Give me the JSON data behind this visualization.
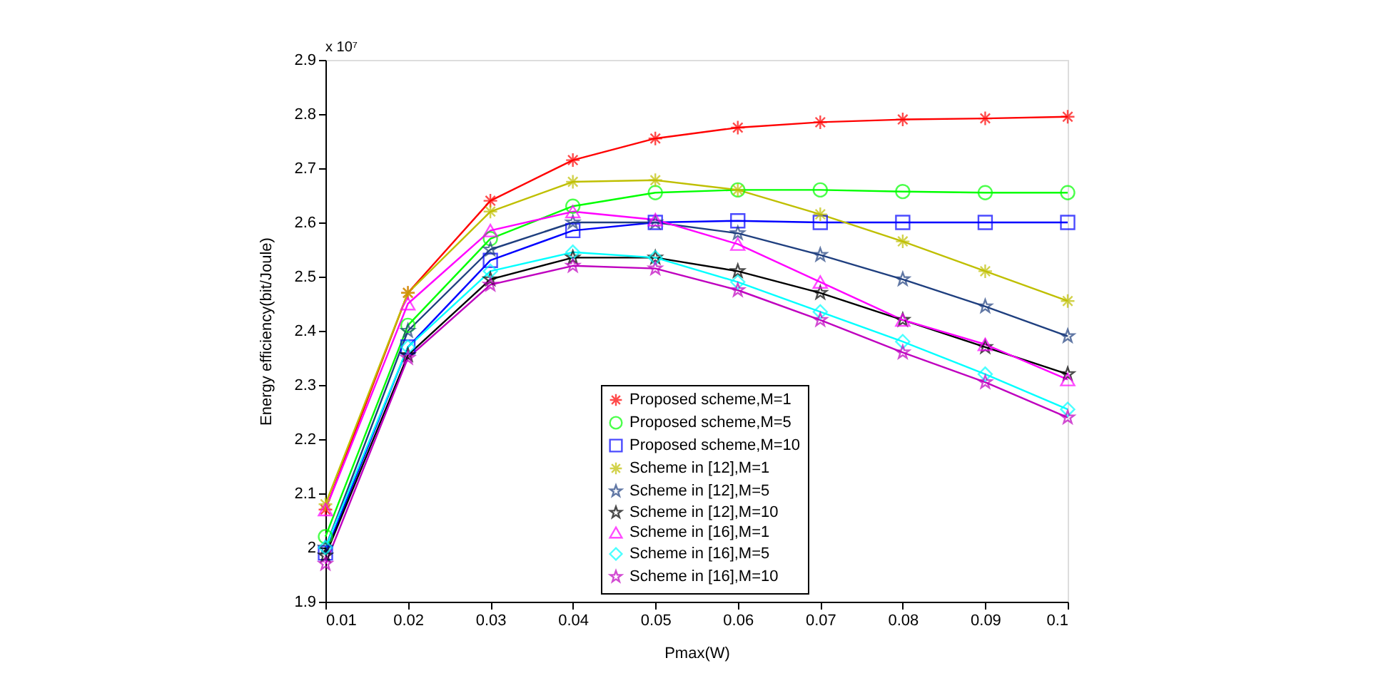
{
  "chart_data": {
    "type": "line",
    "xlabel": "Pmax(W)",
    "ylabel": "Energy efficiency(bit/Joule)",
    "annotations": [
      "x 10⁷"
    ],
    "x": [
      0.01,
      0.02,
      0.03,
      0.04,
      0.05,
      0.06,
      0.07,
      0.08,
      0.09,
      0.1
    ],
    "xlim": [
      0.01,
      0.1
    ],
    "xticks": [
      0.01,
      0.02,
      0.03,
      0.04,
      0.05,
      0.06,
      0.07,
      0.08,
      0.09,
      0.1
    ],
    "ylim": [
      1.9,
      2.9
    ],
    "yticks": [
      1.9,
      2,
      2.1,
      2.2,
      2.3,
      2.4,
      2.5,
      2.6,
      2.7,
      2.8,
      2.9
    ],
    "grid": false,
    "legend": "bottom right",
    "line_style": "solid",
    "series": [
      {
        "name": "Proposed scheme,M=1",
        "color": "#ff0000",
        "marker": "cross",
        "values": [
          2.07,
          2.47,
          2.64,
          2.715,
          2.755,
          2.775,
          2.785,
          2.79,
          2.792,
          2.795
        ]
      },
      {
        "name": "Proposed scheme,M=5",
        "color": "#00ff00",
        "marker": "circle",
        "values": [
          2.02,
          2.41,
          2.57,
          2.63,
          2.655,
          2.66,
          2.66,
          2.657,
          2.655,
          2.655
        ]
      },
      {
        "name": "Proposed scheme,M=10",
        "color": "#0000ff",
        "marker": "square",
        "values": [
          1.99,
          2.37,
          2.53,
          2.585,
          2.6,
          2.603,
          2.6,
          2.6,
          2.6,
          2.6
        ]
      },
      {
        "name": "Scheme in [12],M=1",
        "color": "#bfbf00",
        "marker": "cross",
        "values": [
          2.08,
          2.47,
          2.62,
          2.675,
          2.678,
          2.66,
          2.615,
          2.565,
          2.51,
          2.455
        ]
      },
      {
        "name": "Scheme in [12],M=5",
        "color": "#1f3f7f",
        "marker": "star",
        "values": [
          2.0,
          2.4,
          2.55,
          2.6,
          2.6,
          2.58,
          2.54,
          2.495,
          2.445,
          2.39
        ]
      },
      {
        "name": "Scheme in [12],M=10",
        "color": "#000000",
        "marker": "star",
        "values": [
          1.985,
          2.355,
          2.495,
          2.535,
          2.535,
          2.51,
          2.47,
          2.42,
          2.37,
          2.32
        ]
      },
      {
        "name": "Scheme in [16],M=1",
        "color": "#ff00ff",
        "marker": "triangle",
        "values": [
          2.07,
          2.45,
          2.585,
          2.62,
          2.605,
          2.56,
          2.49,
          2.42,
          2.375,
          2.31
        ]
      },
      {
        "name": "Scheme in [16],M=5",
        "color": "#00ffff",
        "marker": "diamond",
        "values": [
          2.0,
          2.37,
          2.51,
          2.545,
          2.535,
          2.49,
          2.435,
          2.38,
          2.32,
          2.255
        ]
      },
      {
        "name": "Scheme in [16],M=10",
        "color": "#bf00bf",
        "marker": "star",
        "values": [
          1.97,
          2.35,
          2.485,
          2.52,
          2.515,
          2.475,
          2.42,
          2.36,
          2.305,
          2.24
        ]
      }
    ]
  }
}
